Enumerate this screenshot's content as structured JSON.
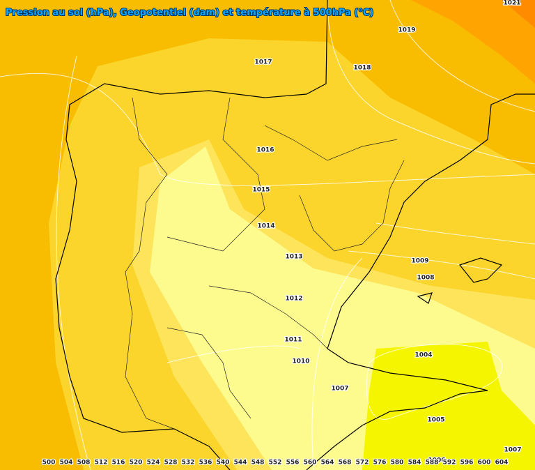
{
  "title": "Pression au sol (hPa), Geopotentiel (dam) et température à 500hPa (°C)",
  "isobar_labels": [
    "1021",
    "1019",
    "1017",
    "1018",
    "1016",
    "1015",
    "1014",
    "1013",
    "1009",
    "1008",
    "1012",
    "1011",
    "1010",
    "1004",
    "1007",
    "1005",
    "1007",
    "1006"
  ],
  "legend_labels": [
    500,
    504,
    508,
    512,
    516,
    520,
    524,
    528,
    532,
    536,
    540,
    544,
    548,
    552,
    556,
    560,
    564,
    568,
    572,
    576,
    580,
    584,
    588,
    592,
    596,
    600,
    604
  ]
}
